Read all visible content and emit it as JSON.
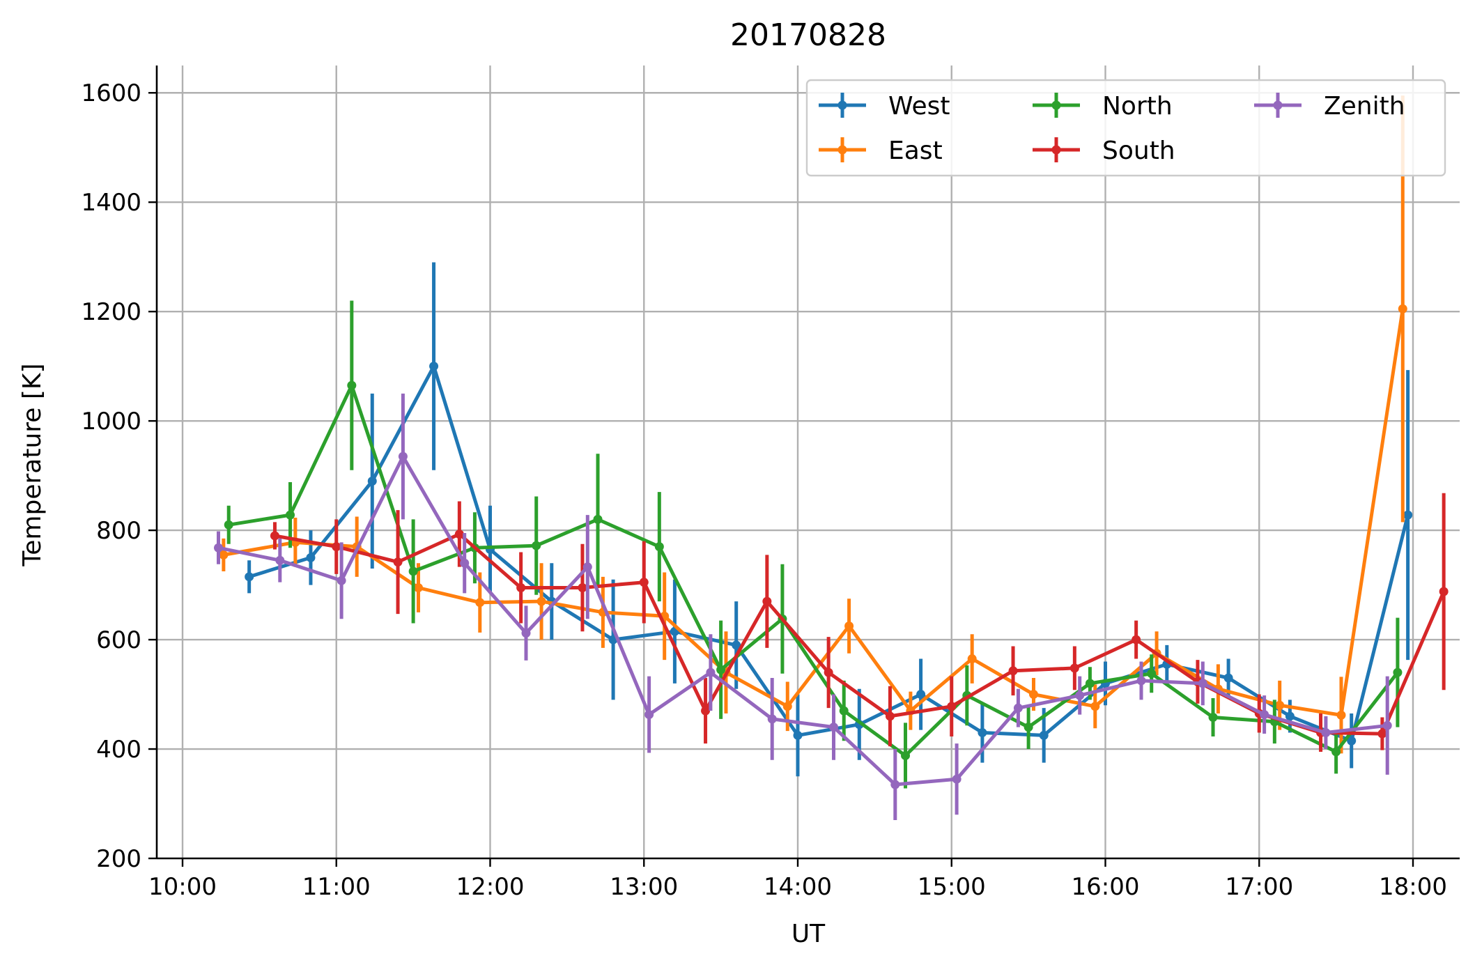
{
  "chart_data": {
    "type": "line",
    "title": "20170828",
    "xlabel": "UT",
    "ylabel": "Temperature [K]",
    "xlim": [
      "10:00",
      "18:00"
    ],
    "ylim": [
      200,
      1650
    ],
    "xticks": [
      "10:00",
      "11:00",
      "12:00",
      "13:00",
      "14:00",
      "15:00",
      "16:00",
      "17:00",
      "18:00"
    ],
    "yticks": [
      200,
      400,
      600,
      800,
      1000,
      1200,
      1400,
      1600
    ],
    "grid": true,
    "legend_position": "top-right",
    "error_bars": true,
    "series": [
      {
        "name": "West",
        "color": "#1f77b4",
        "points": [
          {
            "x": "10:26",
            "y": 715,
            "err": 30
          },
          {
            "x": "10:50",
            "y": 750,
            "err": 50
          },
          {
            "x": "11:14",
            "y": 890,
            "err": 160
          },
          {
            "x": "11:38",
            "y": 1100,
            "err": 190
          },
          {
            "x": "12:00",
            "y": 765,
            "err": 80
          },
          {
            "x": "12:24",
            "y": 670,
            "err": 70
          },
          {
            "x": "12:48",
            "y": 600,
            "err": 110
          },
          {
            "x": "13:12",
            "y": 615,
            "err": 95
          },
          {
            "x": "13:36",
            "y": 590,
            "err": 80
          },
          {
            "x": "14:00",
            "y": 425,
            "err": 75
          },
          {
            "x": "14:24",
            "y": 445,
            "err": 65
          },
          {
            "x": "14:48",
            "y": 500,
            "err": 65
          },
          {
            "x": "15:12",
            "y": 430,
            "err": 55
          },
          {
            "x": "15:36",
            "y": 425,
            "err": 50
          },
          {
            "x": "16:00",
            "y": 520,
            "err": 40
          },
          {
            "x": "16:24",
            "y": 555,
            "err": 35
          },
          {
            "x": "16:48",
            "y": 530,
            "err": 35
          },
          {
            "x": "17:12",
            "y": 460,
            "err": 30
          },
          {
            "x": "17:36",
            "y": 415,
            "err": 50
          },
          {
            "x": "17:58",
            "y": 828,
            "err": 265
          }
        ]
      },
      {
        "name": "East",
        "color": "#ff7f0e",
        "points": [
          {
            "x": "10:16",
            "y": 755,
            "err": 30
          },
          {
            "x": "10:44",
            "y": 778,
            "err": 45
          },
          {
            "x": "11:08",
            "y": 770,
            "err": 55
          },
          {
            "x": "11:32",
            "y": 695,
            "err": 45
          },
          {
            "x": "11:56",
            "y": 668,
            "err": 55
          },
          {
            "x": "12:20",
            "y": 670,
            "err": 70
          },
          {
            "x": "12:44",
            "y": 650,
            "err": 65
          },
          {
            "x": "13:08",
            "y": 643,
            "err": 80
          },
          {
            "x": "13:32",
            "y": 540,
            "err": 75
          },
          {
            "x": "13:56",
            "y": 478,
            "err": 45
          },
          {
            "x": "14:20",
            "y": 625,
            "err": 50
          },
          {
            "x": "14:44",
            "y": 470,
            "err": 35
          },
          {
            "x": "15:08",
            "y": 565,
            "err": 45
          },
          {
            "x": "15:32",
            "y": 500,
            "err": 30
          },
          {
            "x": "15:56",
            "y": 478,
            "err": 40
          },
          {
            "x": "16:20",
            "y": 575,
            "err": 40
          },
          {
            "x": "16:44",
            "y": 510,
            "err": 45
          },
          {
            "x": "17:08",
            "y": 480,
            "err": 45
          },
          {
            "x": "17:32",
            "y": 462,
            "err": 70
          },
          {
            "x": "17:56",
            "y": 1205,
            "err": 390
          }
        ]
      },
      {
        "name": "North",
        "color": "#2ca02c",
        "points": [
          {
            "x": "10:18",
            "y": 810,
            "err": 35
          },
          {
            "x": "10:42",
            "y": 828,
            "err": 60
          },
          {
            "x": "11:06",
            "y": 1065,
            "err": 155
          },
          {
            "x": "11:30",
            "y": 725,
            "err": 95
          },
          {
            "x": "11:54",
            "y": 768,
            "err": 65
          },
          {
            "x": "12:18",
            "y": 772,
            "err": 90
          },
          {
            "x": "12:42",
            "y": 820,
            "err": 120
          },
          {
            "x": "13:06",
            "y": 770,
            "err": 100
          },
          {
            "x": "13:30",
            "y": 545,
            "err": 90
          },
          {
            "x": "13:54",
            "y": 638,
            "err": 100
          },
          {
            "x": "14:18",
            "y": 470,
            "err": 55
          },
          {
            "x": "14:42",
            "y": 388,
            "err": 60
          },
          {
            "x": "15:06",
            "y": 498,
            "err": 55
          },
          {
            "x": "15:30",
            "y": 440,
            "err": 40
          },
          {
            "x": "15:54",
            "y": 520,
            "err": 30
          },
          {
            "x": "16:18",
            "y": 538,
            "err": 35
          },
          {
            "x": "16:42",
            "y": 458,
            "err": 35
          },
          {
            "x": "17:06",
            "y": 450,
            "err": 40
          },
          {
            "x": "17:30",
            "y": 395,
            "err": 40
          },
          {
            "x": "17:54",
            "y": 540,
            "err": 100
          }
        ]
      },
      {
        "name": "South",
        "color": "#d62728",
        "points": [
          {
            "x": "10:36",
            "y": 790,
            "err": 25
          },
          {
            "x": "11:00",
            "y": 770,
            "err": 50
          },
          {
            "x": "11:24",
            "y": 742,
            "err": 95
          },
          {
            "x": "11:48",
            "y": 793,
            "err": 60
          },
          {
            "x": "12:12",
            "y": 695,
            "err": 65
          },
          {
            "x": "12:36",
            "y": 695,
            "err": 80
          },
          {
            "x": "13:00",
            "y": 705,
            "err": 75
          },
          {
            "x": "13:24",
            "y": 470,
            "err": 60
          },
          {
            "x": "13:48",
            "y": 670,
            "err": 85
          },
          {
            "x": "14:12",
            "y": 540,
            "err": 65
          },
          {
            "x": "14:36",
            "y": 460,
            "err": 55
          },
          {
            "x": "15:00",
            "y": 478,
            "err": 55
          },
          {
            "x": "15:24",
            "y": 543,
            "err": 45
          },
          {
            "x": "15:48",
            "y": 548,
            "err": 40
          },
          {
            "x": "16:12",
            "y": 600,
            "err": 35
          },
          {
            "x": "16:36",
            "y": 523,
            "err": 40
          },
          {
            "x": "17:00",
            "y": 465,
            "err": 35
          },
          {
            "x": "17:24",
            "y": 430,
            "err": 35
          },
          {
            "x": "17:48",
            "y": 428,
            "err": 30
          },
          {
            "x": "18:12",
            "y": 688,
            "err": 180
          }
        ]
      },
      {
        "name": "Zenith",
        "color": "#9467bd",
        "points": [
          {
            "x": "10:14",
            "y": 768,
            "err": 30
          },
          {
            "x": "10:38",
            "y": 745,
            "err": 40
          },
          {
            "x": "11:02",
            "y": 708,
            "err": 70
          },
          {
            "x": "11:26",
            "y": 935,
            "err": 115
          },
          {
            "x": "11:50",
            "y": 740,
            "err": 55
          },
          {
            "x": "12:14",
            "y": 612,
            "err": 50
          },
          {
            "x": "12:38",
            "y": 733,
            "err": 95
          },
          {
            "x": "13:02",
            "y": 463,
            "err": 70
          },
          {
            "x": "13:26",
            "y": 540,
            "err": 70
          },
          {
            "x": "13:50",
            "y": 455,
            "err": 75
          },
          {
            "x": "14:14",
            "y": 440,
            "err": 60
          },
          {
            "x": "14:38",
            "y": 335,
            "err": 65
          },
          {
            "x": "15:02",
            "y": 345,
            "err": 65
          },
          {
            "x": "15:26",
            "y": 475,
            "err": 35
          },
          {
            "x": "15:50",
            "y": 498,
            "err": 35
          },
          {
            "x": "16:14",
            "y": 525,
            "err": 35
          },
          {
            "x": "16:38",
            "y": 520,
            "err": 40
          },
          {
            "x": "17:02",
            "y": 463,
            "err": 35
          },
          {
            "x": "17:26",
            "y": 430,
            "err": 30
          },
          {
            "x": "17:50",
            "y": 443,
            "err": 90
          }
        ]
      }
    ]
  }
}
